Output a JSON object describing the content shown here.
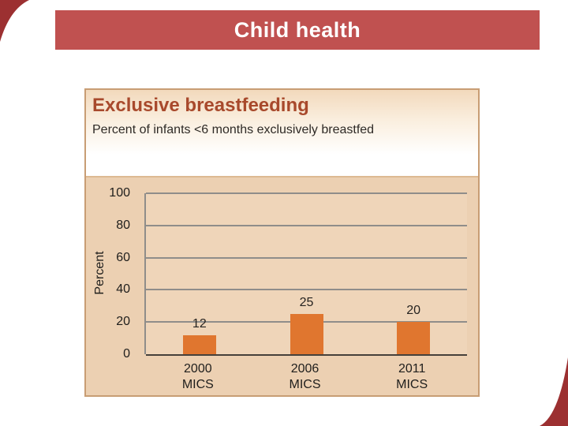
{
  "banner": {
    "title": "Child health",
    "bg_color": "#c05150",
    "text_color": "#ffffff"
  },
  "accents": {
    "corner_wedge_color": "#9c3031"
  },
  "card": {
    "title": "Exclusive breastfeeding",
    "subtitle": "Percent of infants <6 months exclusively breastfed",
    "title_color": "#a8492c",
    "bg_color": "#ecd0b2",
    "border_color": "#c89d74"
  },
  "chart_data": {
    "type": "bar",
    "title": "Exclusive breastfeeding",
    "subtitle": "Percent of infants <6 months exclusively breastfed",
    "categories": [
      "2000 MICS",
      "2006 MICS",
      "2011 MICS"
    ],
    "values": [
      12,
      25,
      20
    ],
    "xlabel": "",
    "ylabel": "Percent",
    "ylim": [
      0,
      100
    ],
    "yticks": [
      0,
      20,
      40,
      60,
      80,
      100
    ],
    "grid": true,
    "legend": "none",
    "bar_color": "#e0762f",
    "gridline_color": "#8f8d8a",
    "axis_color": "#45403a"
  }
}
